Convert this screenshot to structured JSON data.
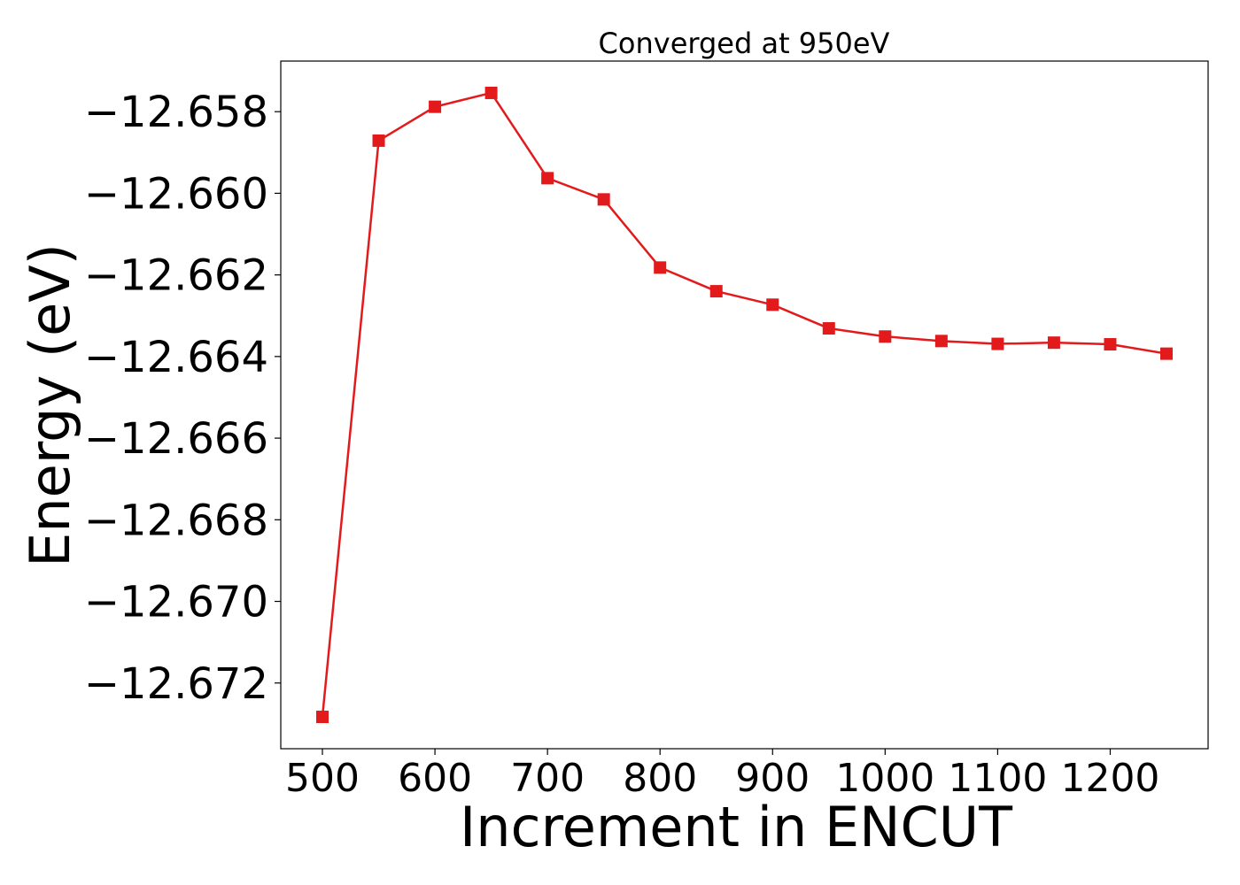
{
  "chart_data": {
    "type": "line",
    "title": "Converged at 950eV",
    "xlabel": "Increment in ENCUT",
    "ylabel": "Energy (eV)",
    "xlim": [
      463,
      1287
    ],
    "ylim": [
      -12.67361,
      -12.65676
    ],
    "xticks": [
      500,
      600,
      700,
      800,
      900,
      1000,
      1100,
      1200
    ],
    "xtick_labels": [
      "500",
      "600",
      "700",
      "800",
      "900",
      "1000",
      "1100",
      "1200"
    ],
    "yticks": [
      -12.658,
      -12.66,
      -12.662,
      -12.664,
      -12.666,
      -12.668,
      -12.67,
      -12.672
    ],
    "ytick_labels": [
      "−12.658",
      "−12.660",
      "−12.662",
      "−12.664",
      "−12.666",
      "−12.668",
      "−12.670",
      "−12.672"
    ],
    "grid": false,
    "series": [
      {
        "color": "#e31a1c",
        "marker": "square",
        "x": [
          500,
          550,
          600,
          650,
          700,
          750,
          800,
          850,
          900,
          950,
          1000,
          1050,
          1100,
          1150,
          1200,
          1250
        ],
        "y": [
          -12.67283,
          -12.65871,
          -12.65788,
          -12.65754,
          -12.65963,
          -12.66015,
          -12.66182,
          -12.6624,
          -12.66273,
          -12.66331,
          -12.66351,
          -12.66362,
          -12.66369,
          -12.66366,
          -12.6637,
          -12.66393
        ]
      }
    ]
  }
}
